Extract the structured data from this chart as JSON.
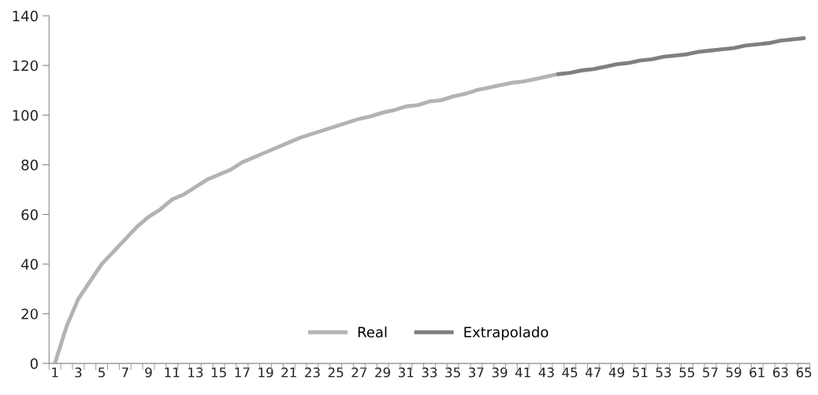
{
  "chart_data": {
    "type": "line",
    "categories": [
      "1",
      null,
      "3",
      null,
      "5",
      null,
      "7",
      null,
      "9",
      null,
      "11",
      null,
      "13",
      null,
      "15",
      null,
      "17",
      null,
      "19",
      null,
      "21",
      null,
      "23",
      null,
      "25",
      null,
      "27",
      null,
      "29",
      null,
      "31",
      null,
      "33",
      null,
      "35",
      null,
      "37",
      null,
      "39",
      null,
      "41",
      null,
      "43",
      null,
      "45",
      null,
      "47",
      null,
      "49",
      null,
      "51",
      null,
      "53",
      null,
      "55",
      null,
      "57",
      null,
      "59",
      null,
      "61",
      null,
      "63",
      null,
      "65"
    ],
    "series": [
      {
        "name": "Real",
        "color": "#b3b3b3",
        "values": [
          0,
          15,
          26,
          33,
          40,
          45,
          50,
          55,
          59,
          62,
          66,
          68,
          71,
          74,
          76,
          78,
          81,
          83,
          85,
          87,
          89,
          91,
          92.5,
          94,
          95.5,
          97,
          98.5,
          99.5,
          101,
          102,
          103.5,
          104,
          105.5,
          106,
          107.5,
          108.5,
          110,
          111,
          112,
          113,
          113.5,
          114.5,
          115.5,
          116.5,
          null,
          null,
          null,
          null,
          null,
          null,
          null,
          null,
          null,
          null,
          null,
          null,
          null,
          null,
          null,
          null,
          null,
          null,
          null,
          null,
          null
        ]
      },
      {
        "name": "Extrapolado",
        "color": "#7f7f7f",
        "values": [
          null,
          null,
          null,
          null,
          null,
          null,
          null,
          null,
          null,
          null,
          null,
          null,
          null,
          null,
          null,
          null,
          null,
          null,
          null,
          null,
          null,
          null,
          null,
          null,
          null,
          null,
          null,
          null,
          null,
          null,
          null,
          null,
          null,
          null,
          null,
          null,
          null,
          null,
          null,
          null,
          null,
          null,
          null,
          116.5,
          117,
          118,
          118.5,
          119.5,
          120.5,
          121,
          122,
          122.5,
          123.5,
          124,
          124.5,
          125.5,
          126,
          126.5,
          127,
          128,
          128.5,
          129,
          130,
          130.5,
          131
        ]
      }
    ],
    "ylim": [
      0,
      140
    ],
    "yticks": [
      0,
      20,
      40,
      60,
      80,
      100,
      120,
      140
    ],
    "grid": false,
    "legend": "bottom",
    "marker": "none",
    "line_style": "solid"
  }
}
